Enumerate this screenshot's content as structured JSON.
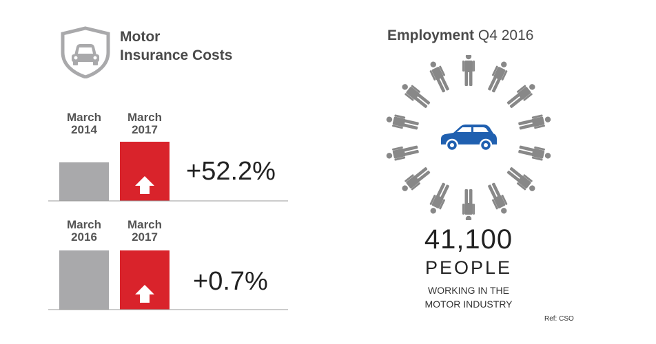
{
  "insurance": {
    "title_line1": "Motor",
    "title_line2": "Insurance Costs",
    "icon": "car-shield-icon"
  },
  "chart_data": [
    {
      "type": "bar",
      "title": "",
      "categories": [
        "March 2014",
        "March 2017"
      ],
      "values": [
        56,
        86
      ],
      "change_label": "+52.2%",
      "colors": [
        "#a9a9ab",
        "#d9232b"
      ]
    },
    {
      "type": "bar",
      "title": "",
      "categories": [
        "March 2016",
        "March 2017"
      ],
      "values": [
        86,
        86
      ],
      "change_label": "+0.7%",
      "colors": [
        "#a9a9ab",
        "#d9232b"
      ]
    }
  ],
  "employment": {
    "title_bold": "Employment",
    "title_rest": "Q4 2016",
    "count": "41,100",
    "unit": "PEOPLE",
    "desc_line1": "WORKING IN THE",
    "desc_line2": "MOTOR INDUSTRY",
    "icons": [
      "person-icon",
      "car-icon"
    ],
    "car_color": "#2060b0",
    "person_color": "#888888"
  },
  "ref": "Ref: CSO"
}
